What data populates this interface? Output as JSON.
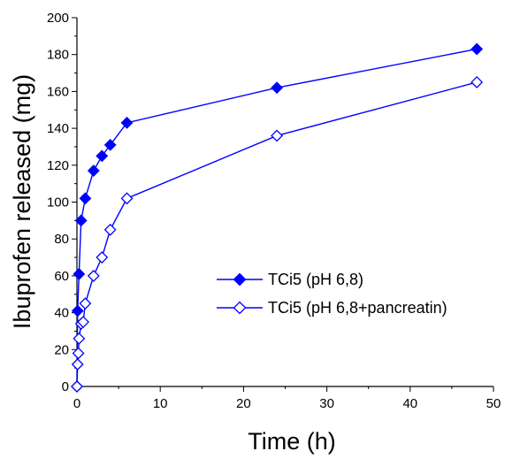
{
  "chart_data": {
    "type": "line",
    "title": "",
    "xlabel": "Time (h)",
    "ylabel": "Ibuprofen released (mg)",
    "xlim": [
      0,
      50
    ],
    "ylim": [
      0,
      200
    ],
    "xticks": [
      0,
      10,
      20,
      30,
      40,
      50
    ],
    "yticks": [
      0,
      20,
      40,
      60,
      80,
      100,
      120,
      140,
      160,
      180,
      200
    ],
    "x_minor_step": 5,
    "y_minor_step": 10,
    "grid": false,
    "legend_position": "center-right",
    "color": "#0000ff",
    "series": [
      {
        "name": "TCi5 (pH 6,8)",
        "marker": "filled-diamond",
        "x": [
          0,
          0.08,
          0.25,
          0.5,
          1,
          2,
          3,
          4,
          6,
          24,
          48
        ],
        "y": [
          0,
          41,
          61,
          90,
          102,
          117,
          125,
          131,
          143,
          162,
          183
        ]
      },
      {
        "name": "TCi5 (pH 6,8+pancreatin)",
        "marker": "open-diamond",
        "x": [
          0,
          0.08,
          0.17,
          0.25,
          0.5,
          0.75,
          1,
          2,
          3,
          4,
          6,
          24,
          48
        ],
        "y": [
          0,
          12,
          18,
          26,
          34,
          35,
          45,
          60,
          70,
          85,
          102,
          136,
          165
        ]
      }
    ]
  }
}
